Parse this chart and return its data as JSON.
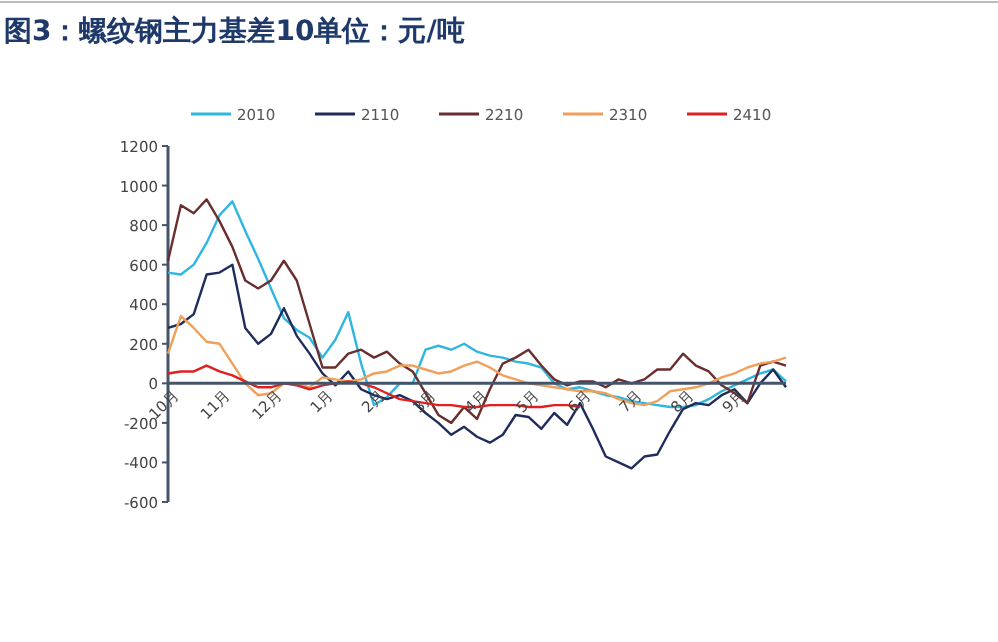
{
  "chart_data": {
    "type": "line",
    "title": "图3：螺纹钢主力基差10单位：元/吨",
    "legend": "top",
    "grid": false,
    "line_style": "solid",
    "categories": [
      "10月",
      null,
      null,
      null,
      "11月",
      null,
      null,
      null,
      "12月",
      null,
      null,
      null,
      "1月",
      null,
      null,
      null,
      "2月",
      null,
      null,
      null,
      "3月",
      null,
      null,
      null,
      "4月",
      null,
      null,
      null,
      "5月",
      null,
      null,
      null,
      "6月",
      null,
      null,
      null,
      "7月",
      null,
      null,
      null,
      "8月",
      null,
      null,
      null,
      "9月",
      null,
      null,
      null,
      null
    ],
    "ylim": [
      -600,
      1200
    ],
    "yticks": [
      -600,
      -400,
      -200,
      0,
      200,
      400,
      600,
      800,
      1000,
      1200
    ],
    "series": [
      {
        "name": "2010",
        "color": "#2eb6e0",
        "values": [
          560,
          550,
          600,
          710,
          850,
          920,
          770,
          630,
          480,
          330,
          270,
          230,
          130,
          220,
          360,
          100,
          -110,
          -70,
          0,
          0,
          170,
          190,
          170,
          200,
          160,
          140,
          130,
          110,
          100,
          80,
          0,
          -30,
          -20,
          -40,
          -60,
          -70,
          -90,
          -100,
          -110,
          -120,
          -120,
          -110,
          -80,
          -40,
          -10,
          20,
          50,
          70,
          10
        ]
      },
      {
        "name": "2110",
        "color": "#1f2d5c",
        "values": [
          280,
          300,
          350,
          550,
          560,
          600,
          280,
          200,
          250,
          380,
          240,
          150,
          50,
          -10,
          60,
          -30,
          -60,
          -80,
          -60,
          -90,
          -150,
          -200,
          -260,
          -220,
          -270,
          -300,
          -260,
          -160,
          -170,
          -230,
          -150,
          -210,
          -100,
          -230,
          -370,
          -400,
          -430,
          -370,
          -360,
          -240,
          -130,
          -100,
          -110,
          -60,
          -30,
          -100,
          0,
          70,
          -20
        ]
      },
      {
        "name": "2210",
        "color": "#6b2e2e",
        "values": [
          620,
          900,
          860,
          930,
          820,
          690,
          520,
          480,
          520,
          620,
          520,
          300,
          80,
          80,
          150,
          170,
          130,
          160,
          100,
          60,
          -50,
          -160,
          -200,
          -120,
          -180,
          -30,
          100,
          130,
          170,
          90,
          20,
          -10,
          10,
          10,
          -20,
          20,
          0,
          20,
          70,
          70,
          150,
          90,
          60,
          -10,
          -50,
          -100,
          90,
          110,
          90
        ]
      },
      {
        "name": "2310",
        "color": "#f0a05a",
        "values": [
          150,
          340,
          280,
          210,
          200,
          100,
          0,
          -60,
          -50,
          0,
          0,
          -20,
          30,
          20,
          10,
          20,
          50,
          60,
          90,
          90,
          70,
          50,
          60,
          90,
          110,
          80,
          40,
          20,
          0,
          -10,
          -20,
          -30,
          -40,
          -40,
          -50,
          -80,
          -100,
          -110,
          -90,
          -40,
          -30,
          -20,
          0,
          30,
          50,
          80,
          100,
          110,
          130
        ]
      },
      {
        "name": "2410",
        "color": "#e02020",
        "values": [
          50,
          60,
          60,
          90,
          60,
          40,
          10,
          -20,
          -20,
          0,
          -10,
          -30,
          -10,
          0,
          10,
          0,
          -20,
          -50,
          -80,
          -90,
          -100,
          -110,
          -110,
          -120,
          -120,
          -110,
          -110,
          -110,
          -120,
          -120,
          -110,
          -110,
          -120,
          null,
          null,
          null,
          null,
          null,
          null,
          null,
          null,
          null,
          null,
          null,
          null,
          null,
          null,
          null,
          null
        ]
      }
    ]
  }
}
